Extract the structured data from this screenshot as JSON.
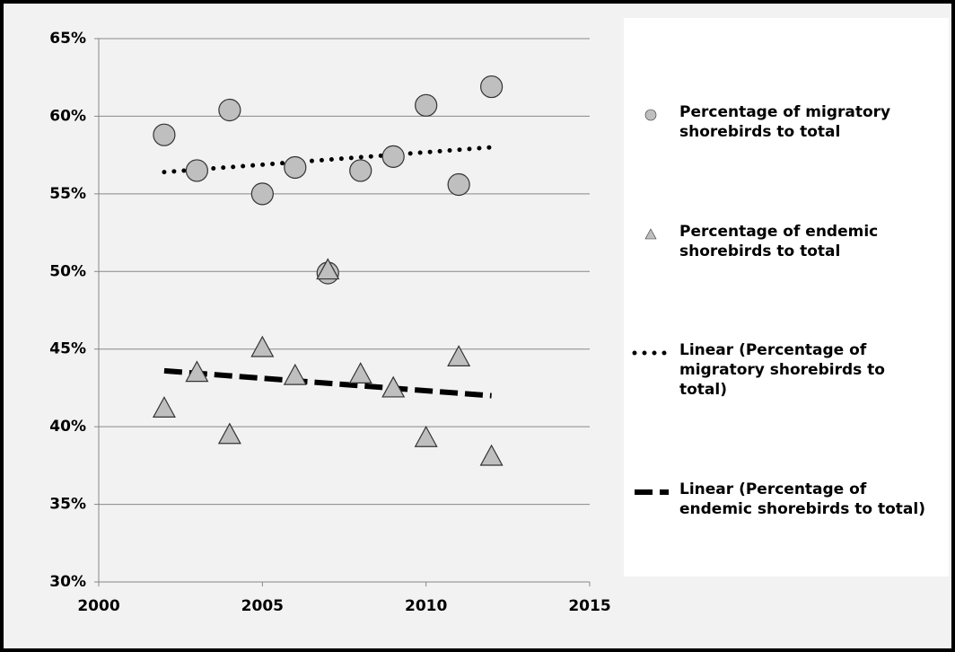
{
  "chart_data": {
    "type": "scatter",
    "xlim": [
      2000,
      2015
    ],
    "xticks": [
      2000,
      2005,
      2010,
      2015
    ],
    "ylim": [
      30,
      65
    ],
    "yticks": [
      {
        "value": 30,
        "label": "30%"
      },
      {
        "value": 35,
        "label": "35%"
      },
      {
        "value": 40,
        "label": "40%"
      },
      {
        "value": 45,
        "label": "45%"
      },
      {
        "value": 50,
        "label": "50%"
      },
      {
        "value": 55,
        "label": "55%"
      },
      {
        "value": 60,
        "label": "60%"
      },
      {
        "value": 65,
        "label": "65%"
      }
    ],
    "grid": true,
    "legend": "right",
    "series": [
      {
        "name": "Percentage of migratory shorebirds to total",
        "type": "scatter",
        "marker": "circle",
        "color": "#bfbfbf",
        "x": [
          2002,
          2003,
          2004,
          2005,
          2006,
          2007,
          2008,
          2009,
          2010,
          2011,
          2012
        ],
        "values": [
          58.8,
          56.5,
          60.4,
          55.0,
          56.7,
          49.9,
          56.5,
          57.4,
          60.7,
          55.6,
          61.9
        ]
      },
      {
        "name": "Percentage of endemic shorebirds to total",
        "type": "scatter",
        "marker": "triangle",
        "color": "#bfbfbf",
        "x": [
          2002,
          2003,
          2004,
          2005,
          2006,
          2007,
          2008,
          2009,
          2010,
          2011,
          2012
        ],
        "values": [
          41.2,
          43.5,
          39.5,
          45.1,
          43.3,
          50.1,
          43.4,
          42.5,
          39.3,
          44.5,
          38.1
        ]
      },
      {
        "name": "Linear (Percentage of migratory shorebirds to total)",
        "type": "line",
        "dash": "dotted",
        "color": "#000000",
        "x": [
          2002,
          2012
        ],
        "values": [
          56.4,
          58.0
        ]
      },
      {
        "name": "Linear (Percentage of endemic shorebirds to total)",
        "type": "line",
        "dash": "dashed",
        "color": "#000000",
        "x": [
          2002,
          2012
        ],
        "values": [
          43.6,
          42.0
        ]
      }
    ]
  }
}
